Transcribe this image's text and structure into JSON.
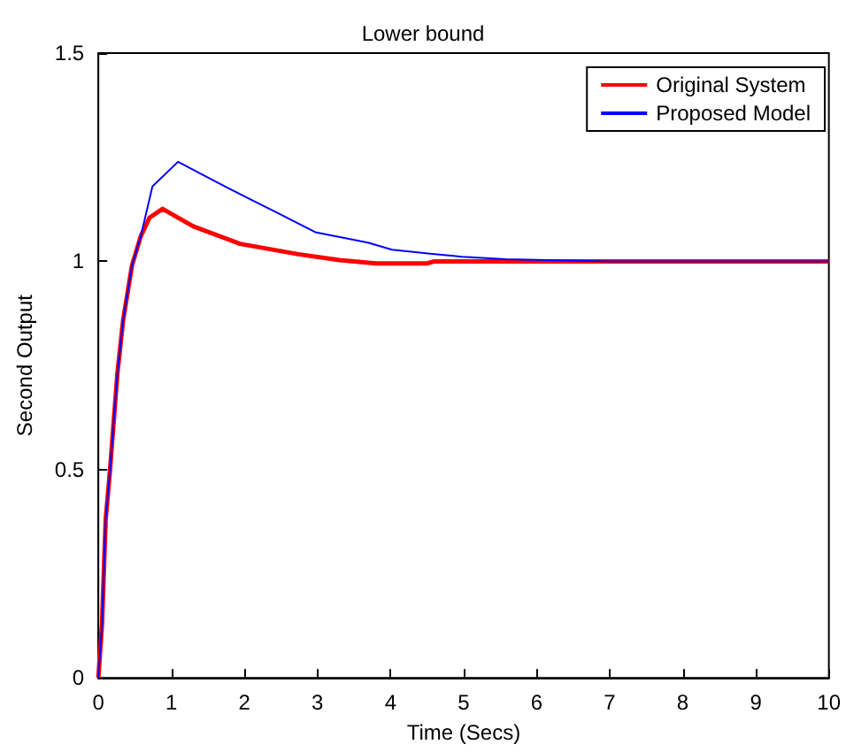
{
  "chart_data": {
    "type": "line",
    "title": "Lower bound",
    "xlabel": "Time (Secs)",
    "ylabel": "Second Output",
    "xlim": [
      0,
      10
    ],
    "xticks": [
      0,
      1,
      2,
      3,
      4,
      5,
      6,
      7,
      8,
      9,
      10
    ],
    "ylim": [
      0,
      1.5
    ],
    "yticks": [
      0,
      0.5,
      1,
      1.5
    ],
    "grid": false,
    "legend": "top right",
    "marker": "none",
    "line_style": "solid",
    "series": [
      {
        "name": "Original System",
        "color": "#ff0000",
        "x": [
          0,
          0.05,
          0.1,
          0.16,
          0.26,
          0.34,
          0.46,
          0.58,
          0.7,
          0.88,
          1.3,
          1.94,
          2.74,
          3.3,
          3.8,
          4.5,
          4.6,
          6,
          8,
          10
        ],
        "values": [
          0,
          0.13,
          0.38,
          0.5,
          0.73,
          0.86,
          0.99,
          1.06,
          1.105,
          1.126,
          1.084,
          1.042,
          1.017,
          1.003,
          0.995,
          0.995,
          1,
          1,
          1,
          1
        ]
      },
      {
        "name": "Proposed Model",
        "color": "#0000ff",
        "x": [
          0,
          0.05,
          0.1,
          0.16,
          0.26,
          0.34,
          0.46,
          0.58,
          0.74,
          1.09,
          1.62,
          2.1,
          2.5,
          2.97,
          3.69,
          4.02,
          4.57,
          4.98,
          5.58,
          7,
          10
        ],
        "values": [
          0,
          0.13,
          0.38,
          0.5,
          0.73,
          0.86,
          0.99,
          1.06,
          1.18,
          1.239,
          1.19,
          1.147,
          1.112,
          1.07,
          1.045,
          1.028,
          1.018,
          1.011,
          1.005,
          1,
          1
        ]
      }
    ]
  }
}
